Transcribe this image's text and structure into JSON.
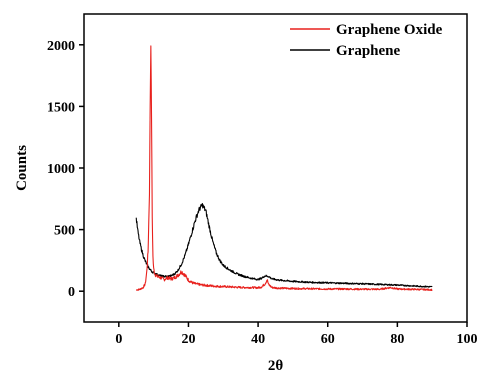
{
  "chart_data": {
    "type": "line",
    "title": "",
    "xlabel": "2θ",
    "ylabel": "Counts",
    "xlim": [
      -10,
      100
    ],
    "ylim": [
      -250,
      2250
    ],
    "xticks": [
      0,
      20,
      40,
      60,
      80,
      100
    ],
    "yticks": [
      0,
      500,
      1000,
      1500,
      2000
    ],
    "xtick_labels": [
      "0",
      "20",
      "40",
      "60",
      "80",
      "100"
    ],
    "ytick_labels": [
      "0",
      "500",
      "1000",
      "1500",
      "2000"
    ],
    "grid": false,
    "legend_position": "top-right",
    "series": [
      {
        "name": "Graphene Oxide",
        "color": "#e8211d",
        "x": [
          5,
          6,
          7,
          7.6,
          8.0,
          8.4,
          8.8,
          9.0,
          9.2,
          9.4,
          9.6,
          9.8,
          10.0,
          10.4,
          11,
          12,
          13,
          14,
          15,
          16,
          17,
          18,
          19,
          20,
          21,
          22,
          24,
          26,
          28,
          30,
          32,
          34,
          36,
          38,
          40,
          41,
          42,
          42.6,
          43,
          44,
          46,
          50,
          55,
          60,
          65,
          70,
          75,
          78,
          80,
          85,
          90
        ],
        "y": [
          10,
          15,
          30,
          60,
          150,
          320,
          800,
          1500,
          2010,
          1400,
          600,
          280,
          180,
          140,
          120,
          110,
          95,
          110,
          100,
          110,
          130,
          160,
          130,
          90,
          70,
          60,
          50,
          45,
          40,
          38,
          35,
          32,
          30,
          30,
          28,
          35,
          60,
          95,
          55,
          30,
          25,
          22,
          20,
          18,
          18,
          16,
          16,
          30,
          18,
          15,
          12
        ]
      },
      {
        "name": "Graphene",
        "color": "#000000",
        "x": [
          5,
          5.5,
          6,
          6.5,
          7,
          7.5,
          8,
          8.5,
          9,
          9.5,
          10,
          11,
          12,
          13,
          14,
          15,
          16,
          17,
          18,
          19,
          20,
          21,
          22,
          23,
          24,
          25,
          26,
          27,
          28,
          29,
          30,
          32,
          34,
          36,
          38,
          40,
          41,
          42,
          43,
          44,
          46,
          50,
          55,
          60,
          65,
          70,
          75,
          78,
          80,
          85,
          90
        ],
        "y": [
          590,
          480,
          400,
          340,
          290,
          250,
          220,
          195,
          175,
          160,
          150,
          135,
          125,
          120,
          120,
          125,
          140,
          170,
          220,
          290,
          380,
          480,
          580,
          660,
          700,
          650,
          520,
          400,
          310,
          250,
          210,
          170,
          140,
          120,
          105,
          95,
          105,
          125,
          120,
          100,
          90,
          80,
          72,
          68,
          64,
          60,
          55,
          52,
          50,
          42,
          35
        ]
      }
    ]
  }
}
